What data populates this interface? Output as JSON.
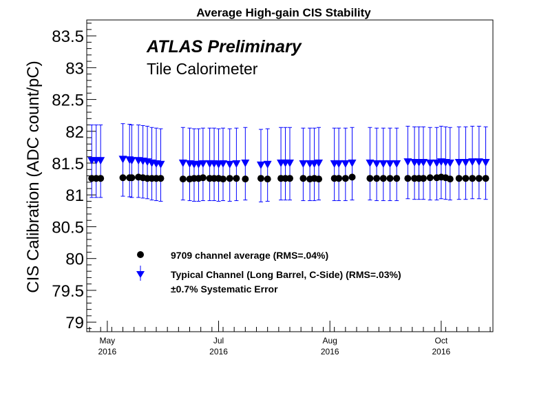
{
  "chart_data": {
    "type": "scatter",
    "title": "Average High-gain CIS Stability",
    "ylabel": "CIS Calibration (ADC count/pC)",
    "xlabel": "",
    "ylim": [
      78.85,
      83.75
    ],
    "xlim": [
      0,
      180
    ],
    "yticks": [
      {
        "value": 79,
        "label": "79"
      },
      {
        "value": 79.5,
        "label": "79.5"
      },
      {
        "value": 80,
        "label": "80"
      },
      {
        "value": 80.5,
        "label": "80.5"
      },
      {
        "value": 81,
        "label": "81"
      },
      {
        "value": 81.5,
        "label": "81.5"
      },
      {
        "value": 82,
        "label": "82"
      },
      {
        "value": 82.5,
        "label": "82.5"
      },
      {
        "value": 83,
        "label": "83"
      },
      {
        "value": 83.5,
        "label": "83.5"
      }
    ],
    "xticks": [
      {
        "value": 8,
        "month": "May",
        "year": "2016"
      },
      {
        "value": 58,
        "month": "Jul",
        "year": "2016"
      },
      {
        "value": 108,
        "month": "Aug",
        "year": "2016"
      },
      {
        "value": 158,
        "month": "Oct",
        "year": "2016"
      }
    ],
    "annotations": {
      "experiment": "ATLAS Preliminary",
      "detector": "Tile Calorimeter"
    },
    "legend_position": "bottom-left",
    "series": [
      {
        "name": "9709 channel average (RMS=.04%)",
        "marker": "circle",
        "color": "#000000",
        "x": [
          1,
          3,
          5,
          15,
          18,
          19,
          22,
          24,
          26,
          28,
          30,
          32,
          42,
          45,
          47,
          49,
          51,
          54,
          56,
          58,
          60,
          63,
          66,
          70,
          77,
          80,
          86,
          88,
          90,
          96,
          99,
          101,
          103,
          110,
          112,
          115,
          118,
          126,
          129,
          132,
          135,
          138,
          143,
          146,
          148,
          150,
          153,
          156,
          158,
          160,
          162,
          166,
          169,
          172,
          175,
          178
        ],
        "values": [
          81.26,
          81.26,
          81.26,
          81.27,
          81.27,
          81.27,
          81.28,
          81.27,
          81.26,
          81.26,
          81.26,
          81.26,
          81.25,
          81.25,
          81.26,
          81.26,
          81.27,
          81.26,
          81.26,
          81.26,
          81.25,
          81.26,
          81.26,
          81.25,
          81.26,
          81.25,
          81.26,
          81.26,
          81.26,
          81.26,
          81.25,
          81.26,
          81.25,
          81.26,
          81.26,
          81.26,
          81.28,
          81.26,
          81.26,
          81.26,
          81.26,
          81.26,
          81.26,
          81.26,
          81.26,
          81.26,
          81.27,
          81.27,
          81.28,
          81.27,
          81.25,
          81.26,
          81.26,
          81.26,
          81.26,
          81.26
        ]
      },
      {
        "name": "Typical Channel (Long Barrel, C-Side) (RMS=.03%)",
        "marker": "triangle-down",
        "color": "#0000ff",
        "error": 0.57,
        "x": [
          1,
          3,
          5,
          15,
          18,
          19,
          22,
          24,
          26,
          28,
          30,
          32,
          42,
          45,
          47,
          49,
          51,
          54,
          56,
          58,
          60,
          63,
          66,
          70,
          77,
          80,
          86,
          88,
          90,
          96,
          99,
          101,
          103,
          110,
          112,
          115,
          118,
          126,
          129,
          132,
          135,
          138,
          143,
          146,
          148,
          150,
          153,
          156,
          158,
          160,
          162,
          166,
          169,
          172,
          175,
          178
        ],
        "values": [
          81.53,
          81.53,
          81.53,
          81.55,
          81.54,
          81.53,
          81.53,
          81.52,
          81.51,
          81.49,
          81.48,
          81.47,
          81.49,
          81.48,
          81.47,
          81.47,
          81.48,
          81.48,
          81.48,
          81.47,
          81.48,
          81.47,
          81.48,
          81.49,
          81.46,
          81.47,
          81.49,
          81.49,
          81.49,
          81.48,
          81.48,
          81.48,
          81.49,
          81.48,
          81.48,
          81.48,
          81.49,
          81.49,
          81.48,
          81.48,
          81.48,
          81.48,
          81.51,
          81.5,
          81.5,
          81.5,
          81.49,
          81.49,
          81.51,
          81.5,
          81.49,
          81.5,
          81.5,
          81.51,
          81.51,
          81.5
        ]
      }
    ],
    "systematic_error_label": "±0.7% Systematic Error"
  }
}
